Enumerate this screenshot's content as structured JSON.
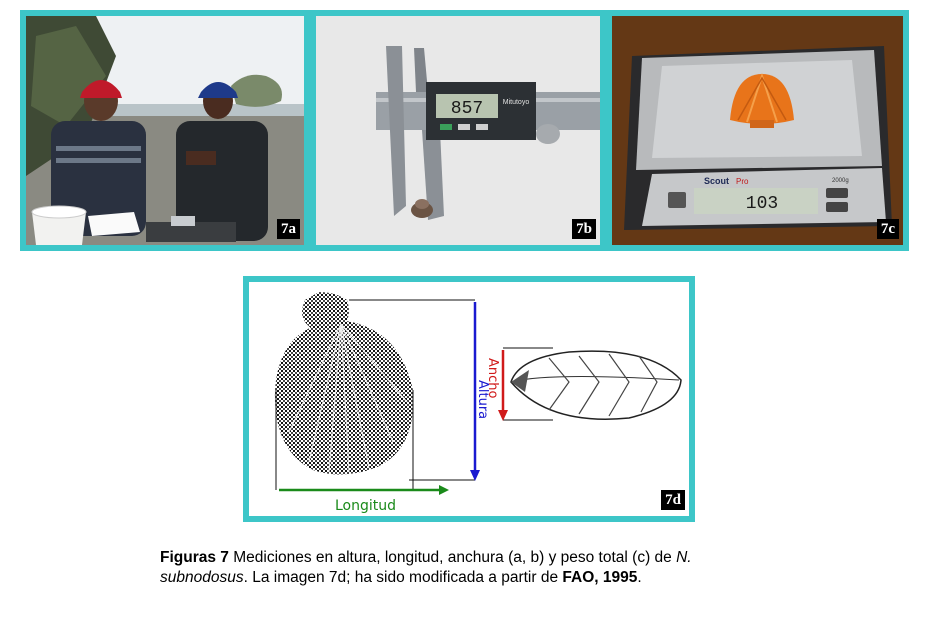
{
  "panels": {
    "a": {
      "label": "7a"
    },
    "b": {
      "label": "7b",
      "display": "857",
      "brand": "Mitutoyo"
    },
    "c": {
      "label": "7c",
      "display": "103",
      "brand": "Scout",
      "brand_suffix": "Pro",
      "model": "2000g"
    },
    "d": {
      "label": "7d",
      "label_length": "Longitud",
      "label_height": "Altura",
      "label_width": "Ancho"
    }
  },
  "caption": {
    "fig_label": "Figuras 7",
    "text_1": " Mediciones en altura, longitud, anchura (a, b) y peso total (c) de ",
    "species": "N. subnodosus",
    "text_2": ". La imagen 7d; ha sido modificada a partir de ",
    "source": "FAO, 1995",
    "end": "."
  },
  "colors": {
    "frame": "#3dc6c8",
    "longitud": "#1a8a1a",
    "altura": "#1a1ad0",
    "ancho": "#d01a1a"
  }
}
